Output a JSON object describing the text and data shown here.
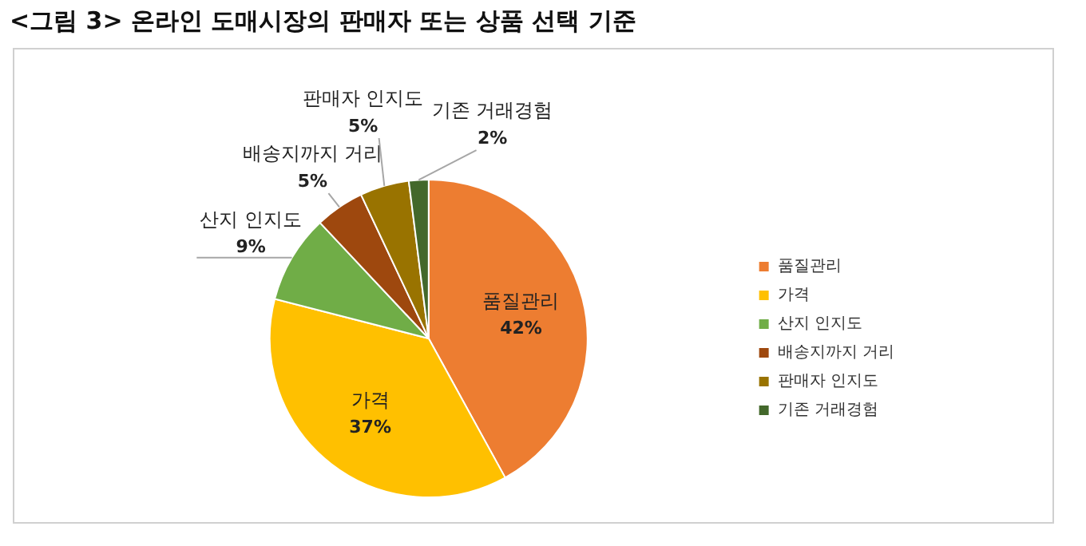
{
  "chart_data": {
    "type": "pie",
    "title": "<그림 3> 온라인 도매시장의 판매자 또는 상품 선택 기준",
    "categories": [
      "품질관리",
      "가격",
      "산지 인지도",
      "배송지까지 거리",
      "판매자 인지도",
      "기존 거래경험"
    ],
    "values": [
      42,
      37,
      9,
      5,
      5,
      2
    ],
    "colors": [
      "#ed7d31",
      "#ffc000",
      "#70ad47",
      "#9e480e",
      "#997300",
      "#43682b"
    ],
    "value_labels": [
      "42%",
      "37%",
      "9%",
      "5%",
      "5%",
      "2%"
    ],
    "legend": "right"
  }
}
